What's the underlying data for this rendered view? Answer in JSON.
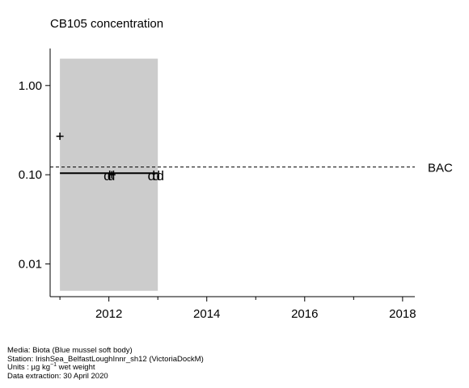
{
  "chart_data": {
    "type": "scatter",
    "title": "CB105 concentration",
    "xlabel": "",
    "ylabel": "",
    "x_scale": "linear",
    "y_scale": "log",
    "xlim": [
      2010.8,
      2018.25
    ],
    "ylim": [
      0.0043,
      2.6
    ],
    "x_ticks": [
      2012,
      2014,
      2016,
      2018
    ],
    "x_minor_ticks": [
      2011,
      2013,
      2015,
      2017
    ],
    "y_ticks": [
      {
        "value": 1.0,
        "label": "1.00"
      },
      {
        "value": 0.1,
        "label": "0.10"
      },
      {
        "value": 0.01,
        "label": "0.01"
      }
    ],
    "grid": false,
    "legend": "none",
    "shaded_region": {
      "x": [
        2011,
        2013
      ],
      "y": [
        0.005,
        2.0
      ],
      "color": "#cccccc"
    },
    "trend_line": {
      "x": [
        2011,
        2013
      ],
      "y": [
        0.104,
        0.104
      ]
    },
    "reference_line": {
      "name": "BAC",
      "value": 0.122,
      "style": "dashed"
    },
    "points": [
      {
        "x": 2011.0,
        "y": 0.27,
        "marker": "+",
        "label": ""
      },
      {
        "x": 2011.97,
        "y": 0.098,
        "marker": "text",
        "label": "d"
      },
      {
        "x": 2012.05,
        "y": 0.098,
        "marker": "text",
        "label": "d"
      },
      {
        "x": 2012.06,
        "y": 0.1,
        "marker": "+",
        "label": ""
      },
      {
        "x": 2012.87,
        "y": 0.098,
        "marker": "text",
        "label": "d"
      },
      {
        "x": 2012.97,
        "y": 0.098,
        "marker": "text",
        "label": "d"
      },
      {
        "x": 2013.05,
        "y": 0.098,
        "marker": "text",
        "label": "d"
      }
    ]
  },
  "footer": {
    "media": "Media: Biota (Blue mussel soft body)",
    "station": "Station: IrishSea_BelfastLoughInnr_sh12 (VictoriaDockM)",
    "units_prefix": "Units : µg kg",
    "units_sup": "−1",
    "units_suffix": " wet weight",
    "extraction": "Data extraction: 30 April 2020"
  }
}
